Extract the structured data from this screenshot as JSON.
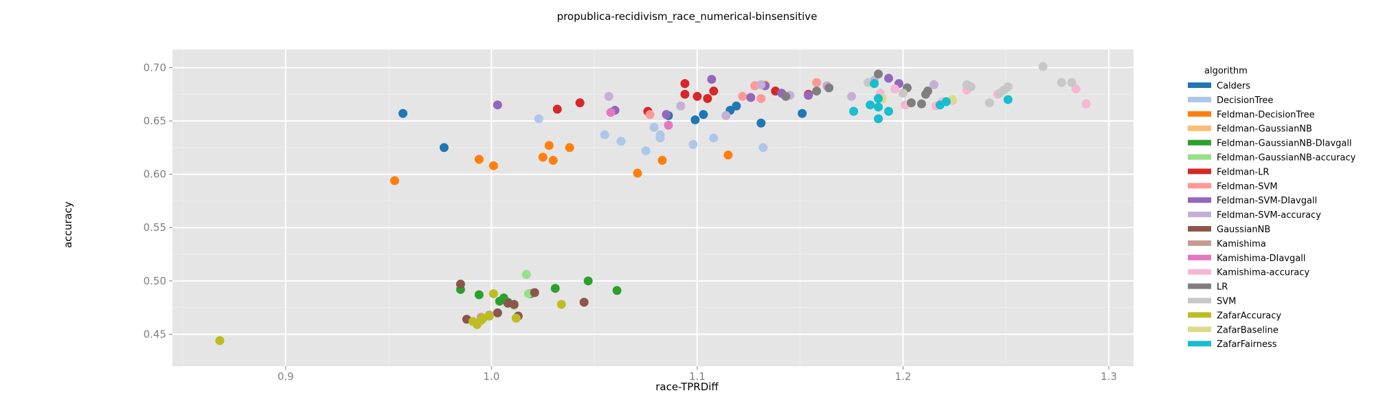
{
  "chart_data": {
    "type": "scatter",
    "title": "propublica-recidivism_race_numerical-binsensitive",
    "xlabel": "race-TPRDiff",
    "ylabel": "accuracy",
    "xlim": [
      0.845,
      1.312
    ],
    "ylim": [
      0.42,
      0.717
    ],
    "x_ticks": [
      0.9,
      1.0,
      1.1,
      1.2,
      1.3
    ],
    "x_tick_labels": [
      "0.9",
      "1.0",
      "1.1",
      "1.2",
      "1.3"
    ],
    "y_ticks": [
      0.45,
      0.5,
      0.55,
      0.6,
      0.65,
      0.7
    ],
    "y_tick_labels": [
      "0.45",
      "0.50",
      "0.55",
      "0.60",
      "0.65",
      "0.70"
    ],
    "grid": true,
    "legend_title": "algorithm",
    "legend_position": "right",
    "colors": {
      "panel_background": "#e5e5e5",
      "grid_major": "#ffffff",
      "grid_minor": "#ededed"
    },
    "series": [
      {
        "name": "Calders",
        "color": "#1f77b4",
        "points": [
          [
            0.957,
            0.657
          ],
          [
            0.977,
            0.625
          ],
          [
            1.086,
            0.655
          ],
          [
            1.099,
            0.651
          ],
          [
            1.103,
            0.656
          ],
          [
            1.116,
            0.66
          ],
          [
            1.119,
            0.664
          ],
          [
            1.131,
            0.648
          ],
          [
            1.151,
            0.657
          ]
        ]
      },
      {
        "name": "DecisionTree",
        "color": "#aec7e8",
        "points": [
          [
            1.023,
            0.652
          ],
          [
            1.055,
            0.637
          ],
          [
            1.063,
            0.631
          ],
          [
            1.075,
            0.622
          ],
          [
            1.079,
            0.644
          ],
          [
            1.082,
            0.637
          ],
          [
            1.082,
            0.634
          ],
          [
            1.098,
            0.628
          ],
          [
            1.108,
            0.634
          ],
          [
            1.132,
            0.625
          ]
        ]
      },
      {
        "name": "Feldman-DecisionTree",
        "color": "#ff7f0e",
        "points": [
          [
            0.953,
            0.594
          ],
          [
            0.994,
            0.614
          ],
          [
            1.001,
            0.608
          ],
          [
            1.025,
            0.616
          ],
          [
            1.028,
            0.627
          ],
          [
            1.03,
            0.613
          ],
          [
            1.038,
            0.625
          ],
          [
            1.071,
            0.601
          ],
          [
            1.083,
            0.613
          ],
          [
            1.115,
            0.618
          ]
        ]
      },
      {
        "name": "Feldman-GaussianNB",
        "color": "#ffbb78",
        "points": [
          [
            1.128,
            0.683
          ],
          [
            1.133,
            0.684
          ]
        ]
      },
      {
        "name": "Feldman-GaussianNB-DIavgall",
        "color": "#2ca02c",
        "points": [
          [
            0.985,
            0.492
          ],
          [
            0.994,
            0.487
          ],
          [
            1.004,
            0.481
          ],
          [
            1.006,
            0.484
          ],
          [
            1.008,
            0.48
          ],
          [
            1.031,
            0.493
          ],
          [
            1.047,
            0.5
          ],
          [
            1.061,
            0.491
          ],
          [
            1.019,
            0.488
          ]
        ]
      },
      {
        "name": "Feldman-GaussianNB-accuracy",
        "color": "#98df8a",
        "points": [
          [
            1.017,
            0.506
          ],
          [
            1.018,
            0.488
          ],
          [
            1.011,
            0.477
          ]
        ]
      },
      {
        "name": "Feldman-LR",
        "color": "#d62728",
        "points": [
          [
            1.032,
            0.661
          ],
          [
            1.043,
            0.667
          ],
          [
            1.076,
            0.659
          ],
          [
            1.094,
            0.685
          ],
          [
            1.094,
            0.675
          ],
          [
            1.1,
            0.673
          ],
          [
            1.105,
            0.671
          ],
          [
            1.108,
            0.678
          ],
          [
            1.138,
            0.678
          ],
          [
            1.154,
            0.675
          ]
        ]
      },
      {
        "name": "Feldman-SVM",
        "color": "#ff9896",
        "points": [
          [
            1.077,
            0.656
          ],
          [
            1.122,
            0.673
          ],
          [
            1.131,
            0.671
          ],
          [
            1.158,
            0.686
          ],
          [
            1.128,
            0.683
          ]
        ]
      },
      {
        "name": "Feldman-SVM-DIavgall",
        "color": "#9467bd",
        "points": [
          [
            1.003,
            0.665
          ],
          [
            1.06,
            0.66
          ],
          [
            1.085,
            0.656
          ],
          [
            1.107,
            0.689
          ],
          [
            1.126,
            0.672
          ],
          [
            1.133,
            0.683
          ],
          [
            1.154,
            0.674
          ],
          [
            1.193,
            0.69
          ],
          [
            1.198,
            0.685
          ],
          [
            1.141,
            0.676
          ]
        ]
      },
      {
        "name": "Feldman-SVM-accuracy",
        "color": "#c5b0d5",
        "points": [
          [
            1.057,
            0.673
          ],
          [
            1.092,
            0.664
          ],
          [
            1.114,
            0.655
          ],
          [
            1.145,
            0.674
          ],
          [
            1.163,
            0.683
          ],
          [
            1.175,
            0.673
          ],
          [
            1.186,
            0.688
          ],
          [
            1.215,
            0.684
          ],
          [
            1.131,
            0.684
          ]
        ]
      },
      {
        "name": "GaussianNB",
        "color": "#8c564b",
        "points": [
          [
            0.985,
            0.497
          ],
          [
            0.988,
            0.464
          ],
          [
            1.003,
            0.47
          ],
          [
            1.008,
            0.479
          ],
          [
            1.011,
            0.478
          ],
          [
            1.013,
            0.467
          ],
          [
            1.021,
            0.489
          ],
          [
            1.045,
            0.48
          ]
        ]
      },
      {
        "name": "Kamishima",
        "color": "#c49c94",
        "points": [
          [
            0.995,
            0.466
          ],
          [
            0.999,
            0.468
          ]
        ]
      },
      {
        "name": "Kamishima-DIavgall",
        "color": "#e377c2",
        "points": [
          [
            1.058,
            0.658
          ],
          [
            1.086,
            0.646
          ]
        ]
      },
      {
        "name": "Kamishima-accuracy",
        "color": "#f7b6d2",
        "points": [
          [
            1.189,
            0.676
          ],
          [
            1.196,
            0.68
          ],
          [
            1.201,
            0.665
          ],
          [
            1.219,
            0.668
          ],
          [
            1.224,
            0.669
          ],
          [
            1.231,
            0.679
          ],
          [
            1.246,
            0.675
          ],
          [
            1.284,
            0.68
          ],
          [
            1.289,
            0.666
          ],
          [
            1.216,
            0.664
          ]
        ]
      },
      {
        "name": "LR",
        "color": "#7f7f7f",
        "points": [
          [
            1.143,
            0.673
          ],
          [
            1.158,
            0.678
          ],
          [
            1.164,
            0.681
          ],
          [
            1.188,
            0.694
          ],
          [
            1.202,
            0.681
          ],
          [
            1.204,
            0.667
          ],
          [
            1.209,
            0.666
          ],
          [
            1.211,
            0.675
          ],
          [
            1.212,
            0.678
          ]
        ]
      },
      {
        "name": "SVM",
        "color": "#c7c7c7",
        "points": [
          [
            1.183,
            0.686
          ],
          [
            1.2,
            0.676
          ],
          [
            1.231,
            0.684
          ],
          [
            1.233,
            0.682
          ],
          [
            1.242,
            0.667
          ],
          [
            1.247,
            0.676
          ],
          [
            1.249,
            0.679
          ],
          [
            1.251,
            0.682
          ],
          [
            1.268,
            0.701
          ],
          [
            1.277,
            0.686
          ],
          [
            1.282,
            0.686
          ]
        ]
      },
      {
        "name": "ZafarAccuracy",
        "color": "#bcbd22",
        "points": [
          [
            0.868,
            0.444
          ],
          [
            0.991,
            0.462
          ],
          [
            0.993,
            0.459
          ],
          [
            0.995,
            0.463
          ],
          [
            0.996,
            0.465
          ],
          [
            0.999,
            0.467
          ],
          [
            1.001,
            0.488
          ],
          [
            1.012,
            0.465
          ],
          [
            1.034,
            0.478
          ]
        ]
      },
      {
        "name": "ZafarBaseline",
        "color": "#dbdb8d",
        "points": [
          [
            1.19,
            0.671
          ],
          [
            1.224,
            0.67
          ]
        ]
      },
      {
        "name": "ZafarFairness",
        "color": "#17becf",
        "points": [
          [
            1.176,
            0.659
          ],
          [
            1.184,
            0.665
          ],
          [
            1.186,
            0.685
          ],
          [
            1.188,
            0.671
          ],
          [
            1.188,
            0.663
          ],
          [
            1.188,
            0.652
          ],
          [
            1.193,
            0.659
          ],
          [
            1.218,
            0.665
          ],
          [
            1.221,
            0.668
          ],
          [
            1.251,
            0.67
          ]
        ]
      }
    ]
  }
}
